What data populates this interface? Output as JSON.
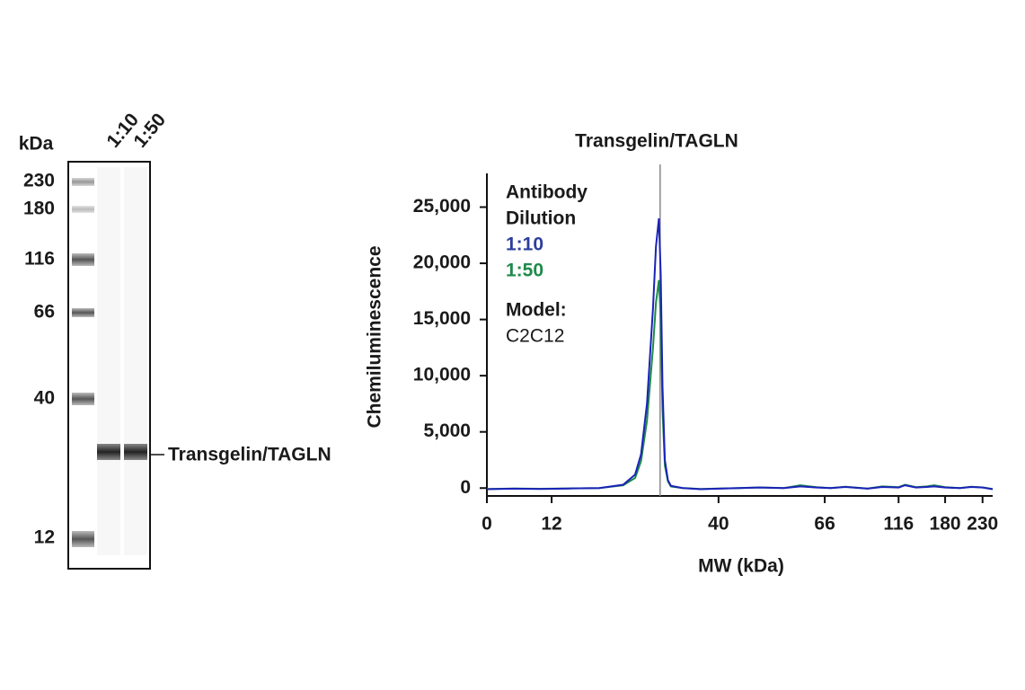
{
  "blot": {
    "unit": "kDa",
    "mw_markers": [
      "230",
      "180",
      "116",
      "66",
      "40",
      "12"
    ],
    "lanes": [
      "1:10",
      "1:50"
    ],
    "band_label": "Transgelin/TAGLN"
  },
  "chart_data": {
    "type": "line",
    "title": "Transgelin/TAGLN",
    "x_label": "MW (kDa)",
    "y_label": "Chemiluminescence",
    "legend_title": [
      "Antibody",
      "Dilution"
    ],
    "annotation": [
      "Model:",
      "C2C12"
    ],
    "x": [
      0,
      5,
      10,
      15,
      20,
      24,
      26,
      27,
      28,
      29,
      29.5,
      30,
      30.3,
      30.6,
      31,
      31.5,
      32,
      34,
      37,
      40,
      45,
      50,
      56,
      60,
      64,
      70,
      80,
      95,
      105,
      116,
      125,
      140,
      155,
      165,
      180,
      200,
      215,
      230,
      245
    ],
    "series": [
      {
        "name": "1:10",
        "color": "#1a22b8",
        "label_color": "#2d3e9c",
        "values": [
          -100,
          -50,
          -80,
          -40,
          0,
          300,
          1200,
          3000,
          7500,
          16000,
          21500,
          24000,
          19000,
          9000,
          2500,
          700,
          200,
          0,
          -100,
          -50,
          0,
          50,
          0,
          150,
          50,
          0,
          100,
          -50,
          100,
          50,
          250,
          50,
          100,
          150,
          50,
          0,
          100,
          50,
          -100
        ]
      },
      {
        "name": "1:50",
        "color": "#1e8a4a",
        "label_color": "#1e8a4a",
        "values": [
          -80,
          -40,
          -60,
          -30,
          0,
          250,
          900,
          2400,
          6000,
          12500,
          16500,
          18500,
          15000,
          7000,
          2000,
          600,
          150,
          0,
          -80,
          -40,
          0,
          60,
          0,
          250,
          80,
          0,
          120,
          -40,
          150,
          80,
          300,
          80,
          150,
          250,
          80,
          0,
          120,
          60,
          -80
        ]
      }
    ],
    "reference_x": 30.2,
    "xlim": [
      0,
      245
    ],
    "xticks": [
      0,
      12,
      40,
      66,
      116,
      180,
      230
    ],
    "ylim": [
      -700,
      28000
    ],
    "yticks": [
      0,
      {
        "value": 5000,
        "label": "5,000"
      },
      {
        "value": 10000,
        "label": "10,000"
      },
      {
        "value": 15000,
        "label": "15,000"
      },
      {
        "value": 20000,
        "label": "20,000"
      },
      {
        "value": 25000,
        "label": "25,000"
      }
    ]
  }
}
